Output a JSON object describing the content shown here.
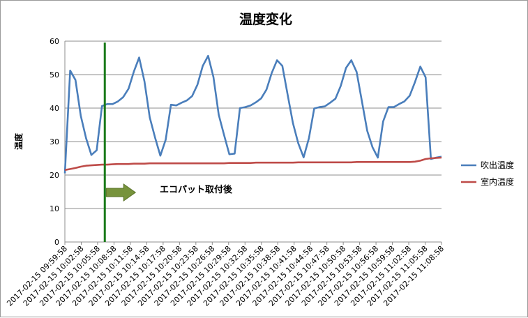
{
  "chart_data": {
    "type": "line",
    "title": "温度変化",
    "ylabel": "温度",
    "xlabel": "",
    "ylim": [
      0,
      60
    ],
    "yticks": [
      0,
      10,
      20,
      30,
      40,
      50,
      60
    ],
    "grid": true,
    "legend_position": "right",
    "tick_labels": [
      "2017-02-15 09:59:58",
      "2017-02-15 10:02:58",
      "2017-02-15 10:05:58",
      "2017-02-15 10:08:58",
      "2017-02-15 10:11:58",
      "2017-02-15 10:14:58",
      "2017-02-15 10:17:58",
      "2017-02-15 10:20:58",
      "2017-02-15 10:23:58",
      "2017-02-15 10:26:58",
      "2017-02-15 10:29:58",
      "2017-02-15 10:32:58",
      "2017-02-15 10:35:58",
      "2017-02-15 10:38:58",
      "2017-02-15 10:41:58",
      "2017-02-15 10:44:58",
      "2017-02-15 10:47:58",
      "2017-02-15 10:50:58",
      "2017-02-15 10:53:58",
      "2017-02-15 10:56:58",
      "2017-02-15 10:59:58",
      "2017-02-15 11:02:58",
      "2017-02-15 11:05:58",
      "2017-02-15 11:08:58"
    ],
    "series": [
      {
        "name": "吹出温度",
        "color": "#4a7ebb",
        "values": [
          20.5,
          51.2,
          48.4,
          37.7,
          31.0,
          26.0,
          27.4,
          40.6,
          41.2,
          41.2,
          42.0,
          43.3,
          45.8,
          50.9,
          55.1,
          48.0,
          37.2,
          31.2,
          25.8,
          30.5,
          41.0,
          40.8,
          41.6,
          42.3,
          43.6,
          47.0,
          52.6,
          55.6,
          49.3,
          38.0,
          32.0,
          26.2,
          26.4,
          40.0,
          40.3,
          40.8,
          41.7,
          42.9,
          45.5,
          50.5,
          54.3,
          52.6,
          44.0,
          35.5,
          29.5,
          25.3,
          31.0,
          39.9,
          40.3,
          40.5,
          41.6,
          42.8,
          46.6,
          52.0,
          54.3,
          50.8,
          42.0,
          33.2,
          28.3,
          25.2,
          36.0,
          40.3,
          40.3,
          41.2,
          42.0,
          43.7,
          47.8,
          52.4,
          49.2,
          24.8,
          25.2,
          25.5
        ]
      },
      {
        "name": "室内温度",
        "color": "#be4b48",
        "values": [
          21.5,
          21.8,
          22.1,
          22.5,
          22.8,
          22.9,
          23.0,
          23.1,
          23.1,
          23.2,
          23.3,
          23.3,
          23.3,
          23.4,
          23.4,
          23.4,
          23.5,
          23.5,
          23.5,
          23.5,
          23.5,
          23.5,
          23.5,
          23.5,
          23.5,
          23.5,
          23.5,
          23.5,
          23.5,
          23.5,
          23.5,
          23.6,
          23.6,
          23.6,
          23.6,
          23.6,
          23.7,
          23.7,
          23.7,
          23.7,
          23.7,
          23.7,
          23.7,
          23.7,
          23.8,
          23.8,
          23.8,
          23.8,
          23.8,
          23.8,
          23.8,
          23.8,
          23.8,
          23.8,
          23.8,
          23.9,
          23.9,
          23.9,
          23.9,
          23.9,
          23.9,
          23.9,
          23.9,
          23.9,
          23.9,
          23.9,
          24.0,
          24.3,
          24.8,
          25.0,
          25.1,
          25.2
        ]
      }
    ],
    "annotation": {
      "label": "エコパット取付後",
      "marker_index": 7,
      "marker_color": "#1a7a1a",
      "arrow_color": "#77933c"
    }
  }
}
